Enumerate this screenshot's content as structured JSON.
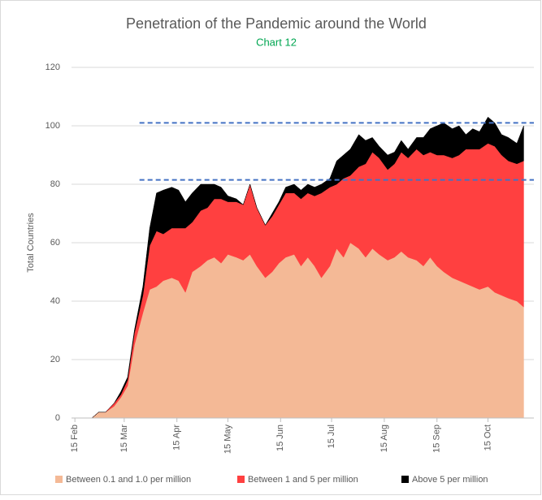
{
  "chart_data": {
    "type": "stacked_area",
    "title": "Penetration of the Pandemic around the World",
    "subtitle": "Chart 12",
    "ylabel": "Total Countries",
    "x": [
      56,
      60,
      64,
      69,
      73,
      77,
      81,
      86,
      90,
      94,
      98,
      103,
      107,
      111,
      115,
      120,
      124,
      128,
      132,
      136,
      141,
      145,
      149,
      153,
      158,
      162,
      166,
      170,
      175,
      179,
      183,
      187,
      191,
      196,
      200,
      204,
      208,
      213,
      217,
      221,
      225,
      230,
      234,
      238,
      242,
      247,
      251,
      255,
      259,
      263,
      268,
      272,
      276,
      280,
      284,
      289,
      293,
      297,
      301,
      306,
      310
    ],
    "series": [
      {
        "name": "Between 0.1 and 1.0 per million",
        "color": "#f4b996",
        "values": [
          0,
          2,
          2,
          4,
          7,
          11,
          25,
          36,
          44,
          45,
          47,
          48,
          47,
          43,
          50,
          52,
          54,
          55,
          53,
          56,
          55,
          54,
          56,
          52,
          48,
          50,
          53,
          55,
          56,
          52,
          55,
          52,
          48,
          52,
          58,
          55,
          60,
          58,
          55,
          58,
          56,
          54,
          55,
          57,
          55,
          54,
          52,
          55,
          52,
          50,
          48,
          47,
          46,
          45,
          44,
          45,
          43,
          42,
          41,
          40,
          38
        ]
      },
      {
        "name": "Between 1 and 5 per million",
        "color": "#ff4040",
        "values": [
          0,
          0,
          0,
          1,
          1,
          2,
          4,
          6,
          15,
          19,
          16,
          17,
          18,
          22,
          17,
          19,
          18,
          20,
          22,
          18,
          19,
          19,
          24,
          20,
          18,
          19,
          20,
          22,
          21,
          23,
          22,
          24,
          29,
          27,
          22,
          27,
          23,
          28,
          32,
          33,
          33,
          31,
          32,
          34,
          34,
          38,
          38,
          36,
          38,
          40,
          41,
          43,
          46,
          47,
          48,
          49,
          50,
          48,
          47,
          47,
          50
        ]
      },
      {
        "name": "Above 5 per million",
        "color": "#000000",
        "values": [
          0,
          0,
          0,
          0,
          1,
          1,
          1,
          3,
          6,
          13,
          15,
          14,
          13,
          9,
          10,
          9,
          8,
          5,
          4,
          2,
          1,
          0,
          0,
          0,
          0,
          1,
          1,
          2,
          3,
          3,
          3,
          3,
          3,
          3,
          8,
          8,
          9,
          11,
          8,
          5,
          4,
          5,
          4,
          4,
          3,
          4,
          6,
          8,
          10,
          11,
          10,
          10,
          5,
          7,
          6,
          9,
          8,
          7,
          8,
          7,
          12
        ]
      }
    ],
    "xlim": [
      44,
      316
    ],
    "xticks": [
      {
        "value": 46,
        "label": "15 Feb"
      },
      {
        "value": 75,
        "label": "15 Mar"
      },
      {
        "value": 106,
        "label": "15 Apr"
      },
      {
        "value": 136,
        "label": "15 May"
      },
      {
        "value": 167,
        "label": "15 Jun"
      },
      {
        "value": 197,
        "label": "15 Jul"
      },
      {
        "value": 228,
        "label": "15 Aug"
      },
      {
        "value": 259,
        "label": "15 Sep"
      },
      {
        "value": 289,
        "label": "15 Oct"
      }
    ],
    "ylim": [
      0,
      120
    ],
    "yticks": [
      0,
      20,
      40,
      60,
      80,
      100,
      120
    ],
    "grid": true,
    "legend": "bottom",
    "reference_lines": [
      {
        "y": 101,
        "x": [
          84,
          316
        ],
        "color": "#4472c4"
      },
      {
        "y": 81.5,
        "x": [
          84,
          316
        ],
        "color": "#4472c4"
      }
    ]
  }
}
